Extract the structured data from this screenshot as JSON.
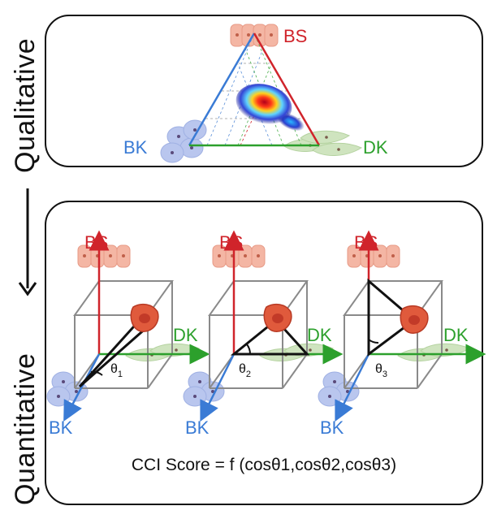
{
  "side_labels": {
    "top": "Qualitative",
    "bottom": "Quantitative"
  },
  "corners": {
    "bs": "BS",
    "bk": "BK",
    "dk": "DK"
  },
  "quantitative": {
    "cubes": [
      {
        "theta": "θ1",
        "theta_base": "θ",
        "theta_sub": "1"
      },
      {
        "theta": "θ2",
        "theta_base": "θ",
        "theta_sub": "2"
      },
      {
        "theta": "θ3",
        "theta_base": "θ",
        "theta_sub": "3"
      }
    ],
    "formula": "CCI Score = f (cosθ1,cosθ2,cosθ3)"
  },
  "colors": {
    "bs": "#d0242b",
    "bk": "#3a7bd5",
    "dk": "#2ca02c",
    "cube": "#8a8a8a"
  }
}
